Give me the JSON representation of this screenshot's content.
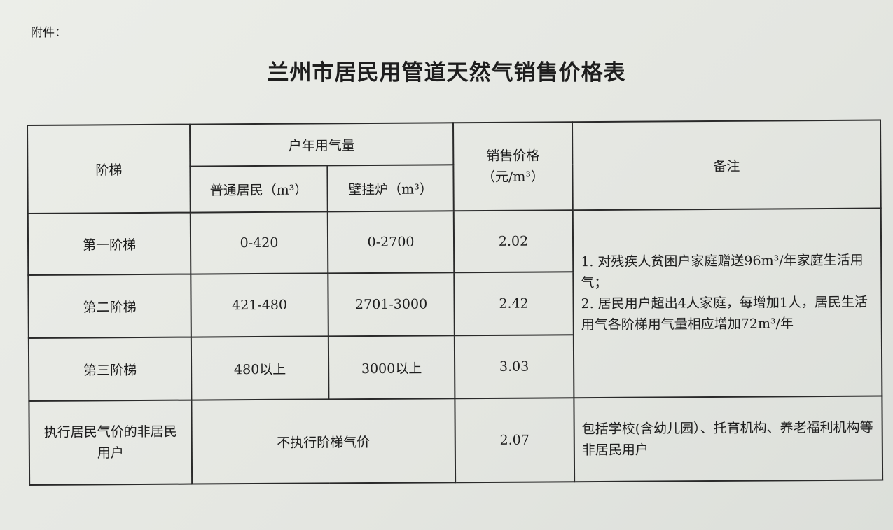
{
  "attachment_label": "附件：",
  "title": "兰州市居民用管道天然气销售价格表",
  "headers": {
    "tier": "阶梯",
    "annual_usage": "户年用气量",
    "ordinary": "普通居民（m³）",
    "wall_boiler": "壁挂炉（m³）",
    "price": "销售价格（元/m³）",
    "remarks": "备注"
  },
  "rows": [
    {
      "tier": "第一阶梯",
      "ordinary": "0-420",
      "wall_boiler": "0-2700",
      "price": "2.02"
    },
    {
      "tier": "第二阶梯",
      "ordinary": "421-480",
      "wall_boiler": "2701-3000",
      "price": "2.42"
    },
    {
      "tier": "第三阶梯",
      "ordinary": "480以上",
      "wall_boiler": "3000以上",
      "price": "3.03"
    }
  ],
  "tier_remarks": [
    "1. 对残疾人贫困户家庭赠送96m³/年家庭生活用气；",
    "2. 居民用户超出4人家庭，每增加1人，居民生活用气各阶梯用气量相应增加72m³/年"
  ],
  "non_resident": {
    "tier": "执行居民气价的非居民用户",
    "usage": "不执行阶梯气价",
    "price": "2.07",
    "remarks": "包括学校(含幼儿园）、托育机构、养老福利机构等非居民用户"
  }
}
